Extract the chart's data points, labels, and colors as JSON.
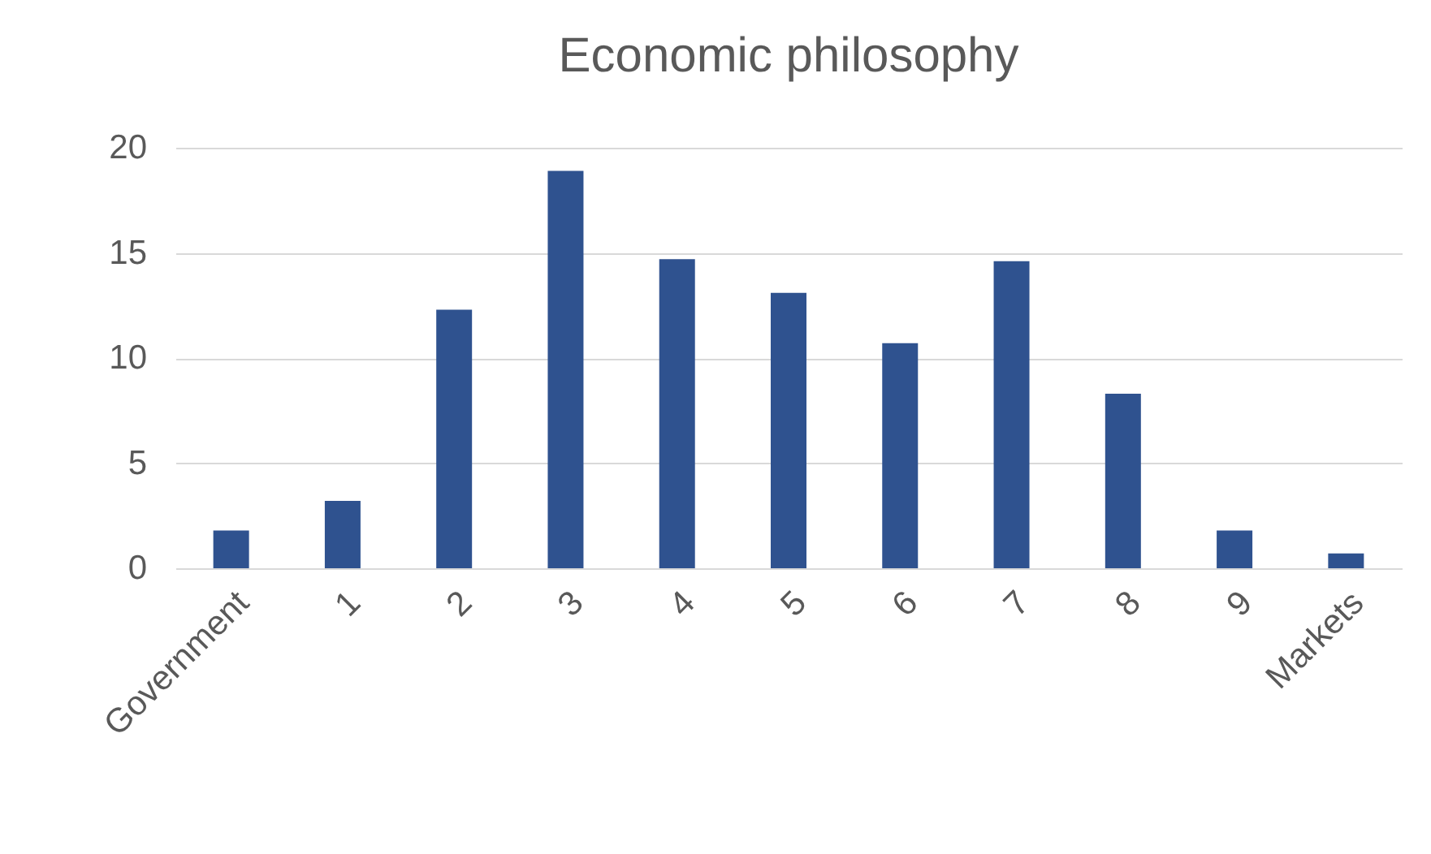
{
  "chart_data": {
    "type": "bar",
    "title": "Economic philosophy",
    "categories": [
      "Government",
      "1",
      "2",
      "3",
      "4",
      "5",
      "6",
      "7",
      "8",
      "9",
      "Markets"
    ],
    "values": [
      1.8,
      3.2,
      12.3,
      18.9,
      14.7,
      13.1,
      10.7,
      14.6,
      8.3,
      1.8,
      0.7
    ],
    "color": "#2f528f",
    "ylim": [
      0,
      20
    ],
    "yticks": [
      0,
      5,
      10,
      15,
      20
    ],
    "grid": "y"
  }
}
